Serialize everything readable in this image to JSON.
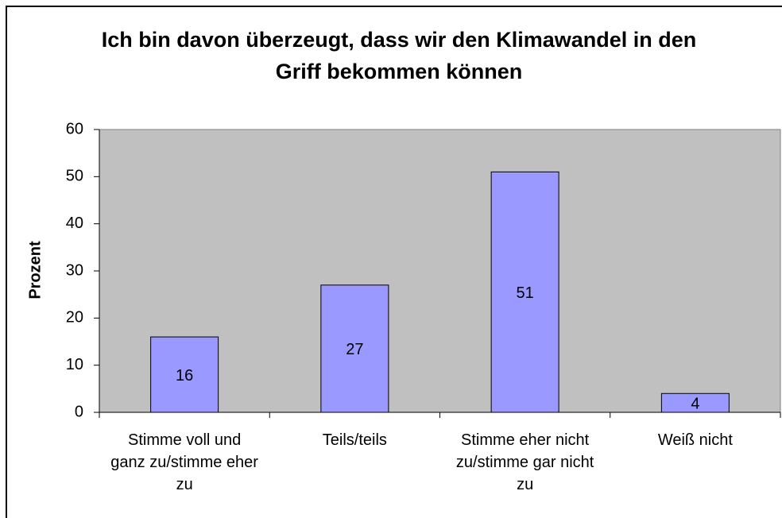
{
  "chart_data": {
    "type": "bar",
    "title": "Ich bin davon überzeugt, dass wir den Klimawandel in den Griff bekommen können",
    "y_label": "Prozent",
    "categories": [
      "Stimme voll und ganz zu/stimme eher zu",
      "Teils/teils",
      "Stimme eher nicht zu/stimme gar nicht zu",
      "Weiß nicht"
    ],
    "values": [
      16,
      27,
      51,
      4
    ],
    "color": "#9999ff",
    "ylim": [
      0,
      60
    ],
    "yticks": [
      0,
      10,
      20,
      30,
      40,
      50,
      60
    ],
    "grid": false,
    "plot_background": "#c0c0c0"
  }
}
